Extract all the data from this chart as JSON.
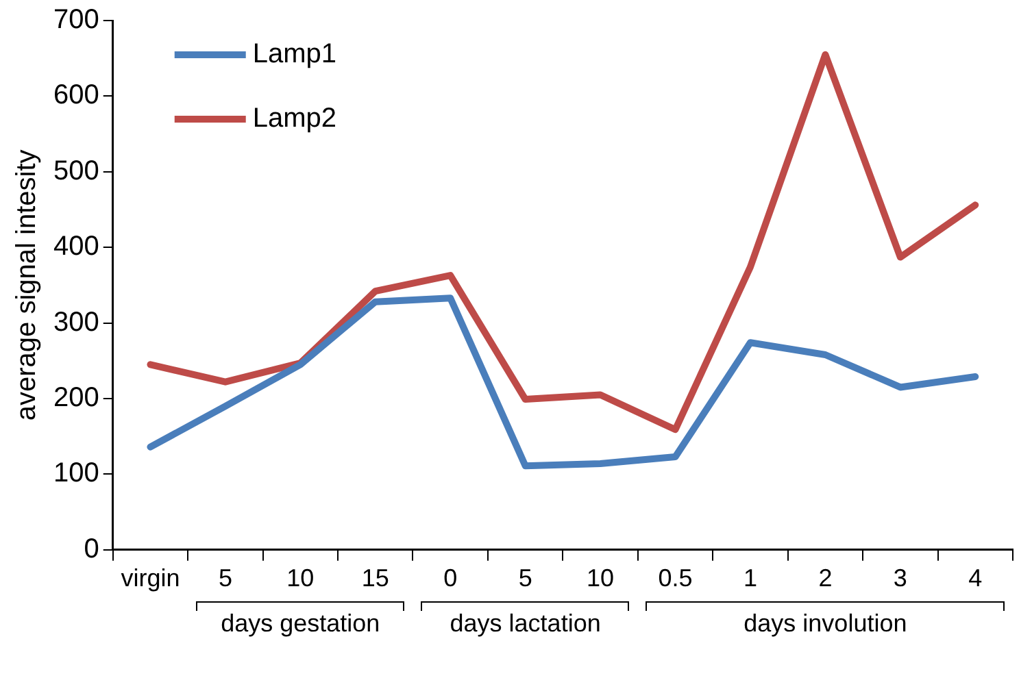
{
  "chart_data": {
    "type": "line",
    "ylabel": "average signal intesity",
    "categories": [
      "virgin",
      "5",
      "10",
      "15",
      "0",
      "5",
      "10",
      "0.5",
      "1",
      "2",
      "3",
      "4"
    ],
    "series": [
      {
        "name": "Lamp1",
        "color": "#4a7ebb",
        "values": [
          136,
          190,
          245,
          328,
          333,
          111,
          114,
          123,
          274,
          258,
          215,
          229
        ]
      },
      {
        "name": "Lamp2",
        "color": "#be4b48",
        "values": [
          245,
          222,
          247,
          342,
          363,
          199,
          205,
          159,
          374,
          655,
          387,
          456
        ]
      }
    ],
    "ylim": [
      0,
      700
    ],
    "yticks": [
      0,
      100,
      200,
      300,
      400,
      500,
      600,
      700
    ],
    "annotations": [
      "days gestation",
      "days lactation",
      "days involution"
    ],
    "grid": false,
    "legend": "top left",
    "marker": "none",
    "line_style": "solid"
  }
}
